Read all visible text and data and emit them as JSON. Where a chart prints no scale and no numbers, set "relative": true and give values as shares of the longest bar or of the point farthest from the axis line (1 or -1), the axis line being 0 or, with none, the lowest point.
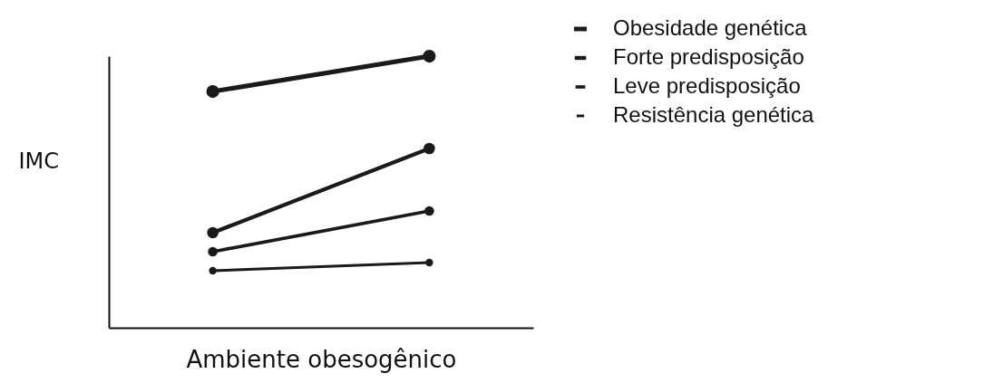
{
  "chart_data": {
    "type": "line",
    "relative": true,
    "xlabel": "Ambiente obesogênico",
    "ylabel": "IMC",
    "categories": [
      null,
      null
    ],
    "legend": "top right",
    "marker": "circle",
    "line_style": "solid",
    "grid": false,
    "series": [
      {
        "name": "Obesidade genética",
        "color": "#1a1a1a",
        "values": [
          0.87,
          1
        ]
      },
      {
        "name": "Forte predisposição",
        "color": "#1a1a1a",
        "values": [
          0.35,
          0.66
        ]
      },
      {
        "name": "Leve predisposição",
        "color": "#1a1a1a",
        "values": [
          0.28,
          0.43
        ]
      },
      {
        "name": "Resistência genética",
        "color": "#1a1a1a",
        "values": [
          0.21,
          0.24
        ]
      }
    ]
  }
}
